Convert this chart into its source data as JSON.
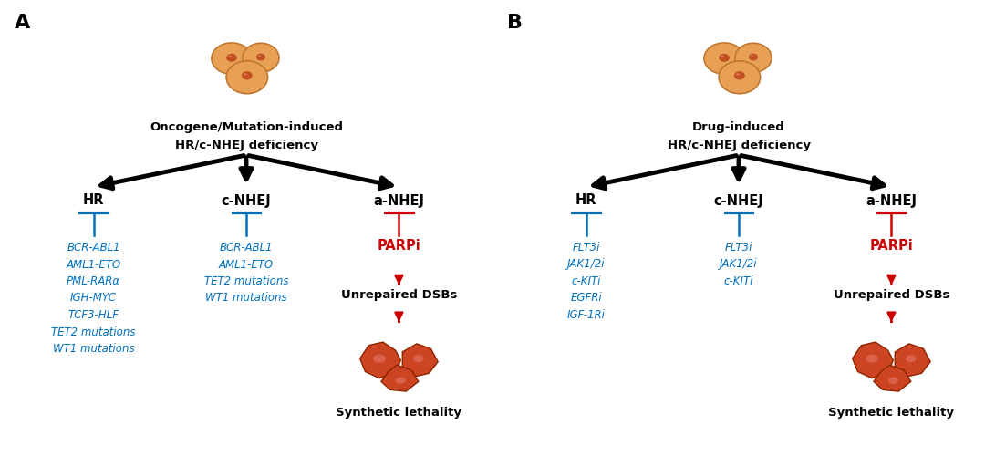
{
  "panel_A": {
    "label": "A",
    "title_line1": "Oncogene/Mutation-induced",
    "title_line2": "HR/c-NHEJ deficiency",
    "HR_items": [
      "BCR-ABL1",
      "AML1-ETO",
      "PML-RARα",
      "IGH-MYC",
      "TCF3-HLF",
      "TET2 mutations",
      "WT1 mutations"
    ],
    "cNHEJ_items": [
      "BCR-ABL1",
      "AML1-ETO",
      "TET2 mutations",
      "WT1 mutations"
    ],
    "aNHEJ_inhibitor": "PARPi",
    "unrepaired": "Unrepaired DSBs",
    "lethality": "Synthetic lethality"
  },
  "panel_B": {
    "label": "B",
    "title_line1": "Drug-induced",
    "title_line2": "HR/c-NHEJ deficiency",
    "HR_items": [
      "FLT3i",
      "JAK1/2i",
      "c-KITi",
      "EGFRi",
      "IGF-1Ri"
    ],
    "cNHEJ_items": [
      "FLT3i",
      "JAK1/2i",
      "c-KITi"
    ],
    "aNHEJ_inhibitor": "PARPi",
    "unrepaired": "Unrepaired DSBs",
    "lethality": "Synthetic lethality"
  },
  "colors": {
    "black": "#000000",
    "blue": "#0070C0",
    "red": "#CC0000",
    "cell_fill": "#E8A055",
    "cell_fill2": "#F0B870",
    "cell_nucleus": "#C05020",
    "cell_edge": "#C07830",
    "dead_fill": "#CC4422",
    "dead_highlight": "#E07060",
    "dead_edge": "#8B2500",
    "background": "#FFFFFF"
  }
}
